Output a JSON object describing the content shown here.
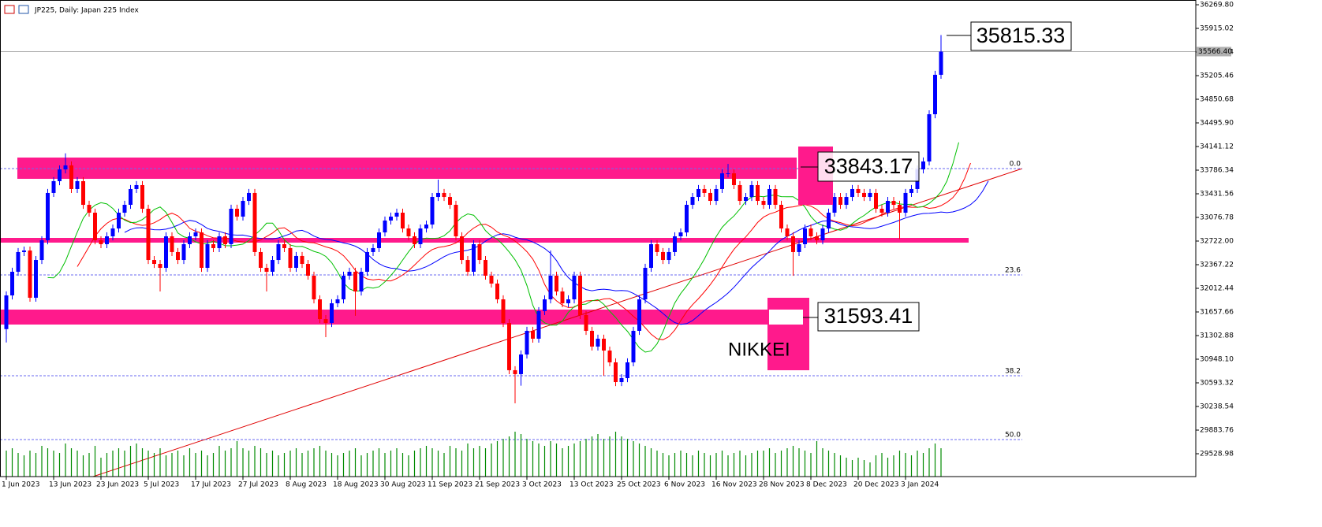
{
  "chart_data": {
    "type": "candlestick",
    "title": "JP225, Daily:  Japan 225 Index",
    "up_color": "#0000ff",
    "down_color": "#ff0000",
    "volume_color": "#008a00",
    "ylim": [
      29186,
      36341
    ],
    "yticks": [
      {
        "value": 36269.8,
        "label": "36269.80"
      },
      {
        "value": 35915.02,
        "label": "35915.02"
      },
      {
        "value": 35560.24,
        "label": "35560.24"
      },
      {
        "value": 35205.46,
        "label": "35205.46"
      },
      {
        "value": 34850.68,
        "label": "34850.68"
      },
      {
        "value": 34495.9,
        "label": "34495.90"
      },
      {
        "value": 34141.12,
        "label": "34141.12"
      },
      {
        "value": 33786.34,
        "label": "33786.34"
      },
      {
        "value": 33431.56,
        "label": "33431.56"
      },
      {
        "value": 33076.78,
        "label": "33076.78"
      },
      {
        "value": 32722.0,
        "label": "32722.00"
      },
      {
        "value": 32367.22,
        "label": "32367.22"
      },
      {
        "value": 32012.44,
        "label": "32012.44"
      },
      {
        "value": 31657.66,
        "label": "31657.66"
      },
      {
        "value": 31302.88,
        "label": "31302.88"
      },
      {
        "value": 30948.1,
        "label": "30948.10"
      },
      {
        "value": 30593.32,
        "label": "30593.32"
      },
      {
        "value": 30238.54,
        "label": "30238.54"
      },
      {
        "value": 29883.76,
        "label": "29883.76"
      },
      {
        "value": 29528.98,
        "label": "29528.98"
      }
    ],
    "fib_levels": [
      {
        "value": 33810,
        "label": "0.0"
      },
      {
        "value": 32214,
        "label": "23.6"
      },
      {
        "value": 30700,
        "label": "38.2"
      },
      {
        "value": 29742,
        "label": "50.0"
      }
    ],
    "price_label": "35566.40",
    "annotations": [
      "35815.33",
      "33843.17",
      "31593.41",
      "NIKKEI"
    ],
    "categories": [
      "1 Jun 2023",
      null,
      null,
      null,
      null,
      null,
      null,
      null,
      "13 Jun 2023",
      null,
      null,
      null,
      null,
      null,
      null,
      null,
      "23 Jun 2023",
      null,
      null,
      null,
      null,
      null,
      null,
      null,
      "5 Jul 2023",
      null,
      null,
      null,
      null,
      null,
      null,
      null,
      "17 Jul 2023",
      null,
      null,
      null,
      null,
      null,
      null,
      null,
      "27 Jul 2023",
      null,
      null,
      null,
      null,
      null,
      null,
      null,
      "8 Aug 2023",
      null,
      null,
      null,
      null,
      null,
      null,
      null,
      "18 Aug 2023",
      null,
      null,
      null,
      null,
      null,
      null,
      null,
      "30 Aug 2023",
      null,
      null,
      null,
      null,
      null,
      null,
      null,
      "11 Sep 2023",
      null,
      null,
      null,
      null,
      null,
      null,
      null,
      "21 Sep 2023",
      null,
      null,
      null,
      null,
      null,
      null,
      null,
      "3 Oct 2023",
      null,
      null,
      null,
      null,
      null,
      null,
      null,
      "13 Oct 2023",
      null,
      null,
      null,
      null,
      null,
      null,
      null,
      "25 Oct 2023",
      null,
      null,
      null,
      null,
      null,
      null,
      null,
      "6 Nov 2023",
      null,
      null,
      null,
      null,
      null,
      null,
      null,
      "16 Nov 2023",
      null,
      null,
      null,
      null,
      null,
      null,
      null,
      "28 Nov 2023",
      null,
      null,
      null,
      null,
      null,
      null,
      null,
      "8 Dec 2023",
      null,
      null,
      null,
      null,
      null,
      null,
      null,
      "20 Dec 2023",
      null,
      null,
      null,
      null,
      null,
      null,
      null,
      "3 Jan 2024",
      null,
      null,
      null,
      null,
      null,
      null
    ],
    "open": [
      31400,
      31906,
      32261,
      32557,
      32580,
      31871,
      32438,
      32734,
      33444,
      33621,
      33798,
      33858,
      33503,
      33621,
      33266,
      33148,
      32734,
      32675,
      32793,
      32911,
      33148,
      33266,
      33503,
      33562,
      33207,
      32438,
      32379,
      32320,
      32793,
      32557,
      32438,
      32675,
      32793,
      32852,
      32320,
      32675,
      32616,
      32793,
      32675,
      33207,
      33089,
      33325,
      33444,
      32557,
      32320,
      32261,
      32438,
      32675,
      32616,
      32320,
      32498,
      32379,
      32202,
      31847,
      31551,
      31492,
      31788,
      31847,
      32202,
      32261,
      31965,
      32261,
      32557,
      32616,
      32852,
      33030,
      33089,
      33148,
      32911,
      32793,
      32675,
      32911,
      32970,
      33384,
      33444,
      33384,
      33266,
      32793,
      32438,
      32261,
      32675,
      32438,
      32202,
      32084,
      31847,
      31492,
      30783,
      30724,
      31019,
      31374,
      31256,
      31670,
      31847,
      32202,
      31965,
      31788,
      31847,
      32202,
      31611,
      31374,
      31138,
      31256,
      31078,
      30901,
      30605,
      30664,
      30901,
      31374,
      31847,
      32320,
      32675,
      32557,
      32438,
      32557,
      32793,
      32852,
      33266,
      33384,
      33503,
      33444,
      33325,
      33503,
      33739,
      33739,
      33562,
      33325,
      33384,
      33562,
      33325,
      33266,
      33503,
      33266,
      32911,
      32793,
      32557,
      32675,
      32911,
      32793,
      32734,
      32911,
      33148,
      33384,
      33266,
      33384,
      33503,
      33444,
      33384,
      33444,
      33207,
      33148,
      33325,
      33266,
      33148,
      33444,
      33503,
      33798,
      33917,
      34626,
      35218
    ],
    "high": [
      31966,
      32321,
      32617,
      32640,
      32640,
      32498,
      32794,
      33504,
      33681,
      33858,
      34040,
      33918,
      33681,
      33681,
      33326,
      33208,
      32794,
      32853,
      32971,
      33208,
      33326,
      33563,
      33622,
      33622,
      33267,
      32498,
      32439,
      32853,
      32853,
      32617,
      32735,
      32853,
      32912,
      32912,
      32735,
      32735,
      32853,
      32853,
      33267,
      33267,
      33385,
      33504,
      33504,
      32617,
      32380,
      32498,
      32735,
      32735,
      32676,
      32558,
      32558,
      32439,
      32262,
      31907,
      31611,
      31848,
      31907,
      32262,
      32321,
      32321,
      32321,
      32617,
      32676,
      32912,
      33090,
      33149,
      33208,
      33208,
      32971,
      32853,
      32971,
      33030,
      33444,
      33645,
      33504,
      33444,
      33326,
      32853,
      32498,
      32735,
      32735,
      32498,
      32262,
      32144,
      31907,
      31552,
      30843,
      31079,
      31434,
      31434,
      31730,
      31907,
      32580,
      32262,
      32025,
      31907,
      32262,
      32262,
      31671,
      31434,
      31316,
      31316,
      31138,
      30961,
      30724,
      30961,
      31434,
      31907,
      32380,
      32735,
      32735,
      32617,
      32617,
      32853,
      32912,
      33326,
      33444,
      33563,
      33563,
      33504,
      33563,
      33799,
      33880,
      33799,
      33622,
      33444,
      33622,
      33622,
      33385,
      33563,
      33563,
      33326,
      32971,
      32853,
      32735,
      32971,
      32971,
      32853,
      32971,
      33208,
      33444,
      33444,
      33444,
      33563,
      33563,
      33504,
      33504,
      33504,
      33267,
      33385,
      33385,
      33326,
      33504,
      33563,
      33858,
      33977,
      34686,
      35278,
      35815.33
    ],
    "low": [
      31200,
      31846,
      32201,
      32497,
      31811,
      31811,
      32378,
      32674,
      33384,
      33561,
      33738,
      33443,
      33443,
      33206,
      33088,
      32674,
      32615,
      32615,
      32733,
      32851,
      33088,
      33206,
      33443,
      33147,
      32378,
      32319,
      31965,
      32260,
      32497,
      32378,
      32378,
      32615,
      32733,
      32260,
      32260,
      32556,
      32556,
      32615,
      32615,
      33029,
      33029,
      33265,
      32497,
      32260,
      31965,
      32201,
      32378,
      32556,
      32260,
      32260,
      32319,
      32142,
      31787,
      31491,
      31280,
      31432,
      31728,
      31787,
      32142,
      31600,
      31905,
      32201,
      32497,
      32556,
      32792,
      32970,
      33029,
      32851,
      32733,
      32615,
      32615,
      32851,
      32910,
      33324,
      33324,
      33206,
      32733,
      32378,
      32201,
      32201,
      32378,
      32142,
      32024,
      31787,
      31432,
      30723,
      30286,
      30550,
      30959,
      31196,
      31196,
      31610,
      31787,
      31905,
      31728,
      31728,
      31787,
      31551,
      31314,
      31078,
      31078,
      30700,
      30841,
      30545,
      30545,
      30604,
      30841,
      31314,
      31787,
      32260,
      32497,
      32378,
      32378,
      32497,
      32733,
      32792,
      33206,
      33324,
      33384,
      33265,
      33265,
      33443,
      33679,
      33502,
      33265,
      33265,
      33324,
      33265,
      33206,
      33206,
      33206,
      32851,
      32733,
      32200,
      32497,
      32615,
      32733,
      32674,
      32674,
      32851,
      33088,
      33206,
      33206,
      33324,
      33384,
      33324,
      33324,
      33147,
      33088,
      33088,
      33206,
      32750,
      33088,
      33384,
      33443,
      33738,
      33857,
      34566,
      35158
    ],
    "close": [
      31906,
      32261,
      32557,
      32580,
      31871,
      32438,
      32734,
      33444,
      33621,
      33798,
      33858,
      33503,
      33621,
      33266,
      33148,
      32734,
      32675,
      32793,
      32911,
      33148,
      33266,
      33503,
      33562,
      33207,
      32438,
      32379,
      32320,
      32793,
      32557,
      32438,
      32675,
      32793,
      32852,
      32320,
      32675,
      32616,
      32793,
      32675,
      33207,
      33089,
      33325,
      33444,
      32557,
      32320,
      32261,
      32438,
      32675,
      32616,
      32320,
      32498,
      32379,
      32202,
      31847,
      31551,
      31492,
      31788,
      31847,
      32202,
      32261,
      31965,
      32261,
      32557,
      32616,
      32852,
      33030,
      33089,
      33148,
      32911,
      32793,
      32675,
      32911,
      32970,
      33384,
      33444,
      33384,
      33266,
      32793,
      32438,
      32261,
      32675,
      32438,
      32202,
      32084,
      31847,
      31492,
      30783,
      30724,
      31019,
      31374,
      31256,
      31670,
      31847,
      32202,
      31965,
      31788,
      31847,
      32202,
      31611,
      31374,
      31138,
      31256,
      31078,
      30901,
      30605,
      30664,
      30901,
      31374,
      31847,
      32320,
      32675,
      32557,
      32438,
      32557,
      32793,
      32852,
      33266,
      33384,
      33503,
      33444,
      33325,
      33503,
      33739,
      33739,
      33562,
      33325,
      33384,
      33562,
      33325,
      33266,
      33503,
      33266,
      32911,
      32793,
      32557,
      32675,
      32911,
      32793,
      32734,
      32911,
      33148,
      33384,
      33266,
      33384,
      33503,
      33444,
      33384,
      33444,
      33207,
      33148,
      33325,
      33266,
      33148,
      33444,
      33503,
      33798,
      33917,
      34626,
      35218,
      35566.4
    ],
    "volume": [
      55,
      60,
      50,
      45,
      55,
      50,
      65,
      60,
      55,
      50,
      70,
      60,
      55,
      45,
      50,
      65,
      40,
      50,
      55,
      60,
      55,
      65,
      70,
      60,
      55,
      50,
      60,
      45,
      50,
      55,
      45,
      60,
      50,
      55,
      45,
      50,
      65,
      55,
      60,
      75,
      60,
      55,
      65,
      60,
      50,
      55,
      45,
      50,
      55,
      60,
      50,
      55,
      60,
      65,
      55,
      50,
      45,
      50,
      55,
      60,
      45,
      50,
      55,
      60,
      50,
      55,
      60,
      50,
      45,
      55,
      60,
      65,
      60,
      55,
      50,
      65,
      60,
      55,
      70,
      60,
      65,
      60,
      70,
      75,
      80,
      85,
      95,
      90,
      80,
      75,
      70,
      65,
      75,
      70,
      60,
      65,
      70,
      75,
      80,
      85,
      90,
      80,
      85,
      95,
      85,
      80,
      75,
      70,
      65,
      60,
      55,
      50,
      45,
      50,
      55,
      50,
      45,
      55,
      50,
      45,
      50,
      55,
      45,
      50,
      55,
      45,
      50,
      55,
      55,
      60,
      50,
      55,
      60,
      65,
      60,
      55,
      50,
      75,
      60,
      55,
      50,
      45,
      40,
      35,
      40,
      35,
      30,
      45,
      50,
      40,
      45,
      55,
      50,
      45,
      55,
      50,
      60,
      70,
      60
    ]
  }
}
